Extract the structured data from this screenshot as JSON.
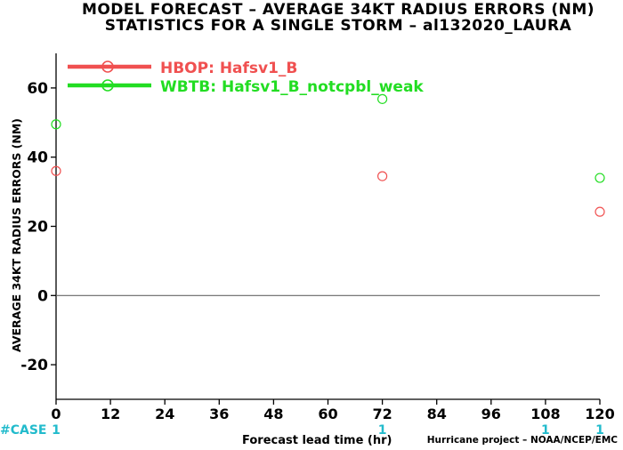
{
  "header": {
    "title": "MODEL FORECAST – AVERAGE 34KT RADIUS ERRORS (NM)",
    "subtitle": "STATISTICS FOR A SINGLE STORM – al132020_LAURA"
  },
  "footer": {
    "xlabel": "Forecast lead time (hr)",
    "credit": "Hurricane project – NOAA/NCEP/EMC"
  },
  "colors": {
    "hbop": "#f05050",
    "wbtb": "#22dd22",
    "case": "#22bbcc",
    "zero_line": "#666666"
  },
  "chart_data": {
    "type": "scatter",
    "title": "MODEL FORECAST – AVERAGE 34KT RADIUS ERRORS (NM)",
    "subtitle": "STATISTICS FOR A SINGLE STORM – al132020_LAURA",
    "xlabel": "Forecast lead time (hr)",
    "ylabel": "AVERAGE 34KT RADIUS ERRORS (NM)",
    "xlim": [
      0,
      120
    ],
    "ylim": [
      -30,
      70
    ],
    "x_ticks": [
      0,
      12,
      24,
      36,
      48,
      60,
      72,
      84,
      96,
      108,
      120
    ],
    "y_ticks": [
      -20,
      0,
      20,
      40,
      60
    ],
    "grid": false,
    "legend_position": "top-left",
    "series": [
      {
        "name": "HBOP: Hafsv1_B",
        "color": "#f05050",
        "x": [
          0,
          72,
          120
        ],
        "y": [
          36,
          34.5,
          24.2
        ]
      },
      {
        "name": "WBTB: Hafsv1_B_notcpbl_weak",
        "color": "#22dd22",
        "x": [
          0,
          72,
          120
        ],
        "y": [
          49.5,
          56.8,
          34
        ]
      }
    ],
    "case_label": "#CASE",
    "case_counts": [
      {
        "x": 0,
        "count": "1"
      },
      {
        "x": 72,
        "count": "1"
      },
      {
        "x": 108,
        "count": "1"
      },
      {
        "x": 120,
        "count": "1"
      }
    ]
  }
}
